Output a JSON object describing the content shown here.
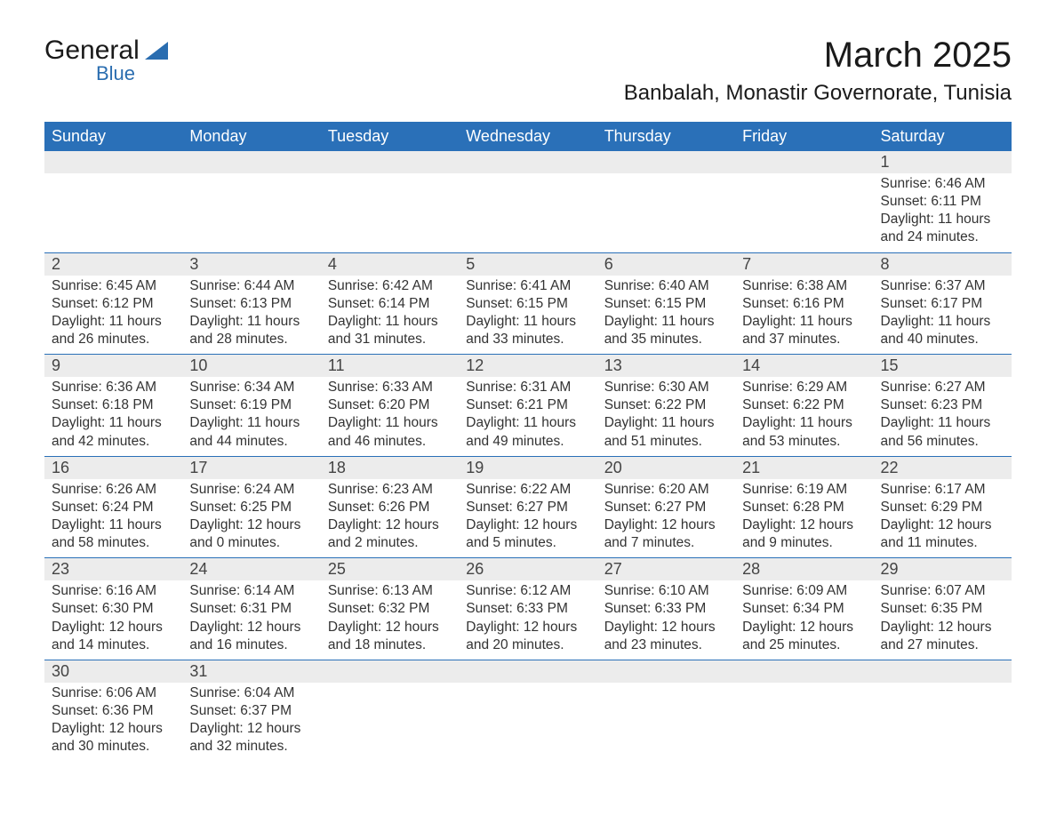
{
  "logo": {
    "general": "General",
    "blue": "Blue"
  },
  "title": "March 2025",
  "location": "Banbalah, Monastir Governorate, Tunisia",
  "day_headers": [
    "Sunday",
    "Monday",
    "Tuesday",
    "Wednesday",
    "Thursday",
    "Friday",
    "Saturday"
  ],
  "colors": {
    "header_bg": "#2a70b8",
    "row_divider": "#2a70b8",
    "daynum_bg": "#ececec",
    "accent_blue": "#2a6db0"
  },
  "weeks": [
    [
      null,
      null,
      null,
      null,
      null,
      null,
      {
        "n": "1",
        "sunrise": "Sunrise: 6:46 AM",
        "sunset": "Sunset: 6:11 PM",
        "dl1": "Daylight: 11 hours",
        "dl2": "and 24 minutes."
      }
    ],
    [
      {
        "n": "2",
        "sunrise": "Sunrise: 6:45 AM",
        "sunset": "Sunset: 6:12 PM",
        "dl1": "Daylight: 11 hours",
        "dl2": "and 26 minutes."
      },
      {
        "n": "3",
        "sunrise": "Sunrise: 6:44 AM",
        "sunset": "Sunset: 6:13 PM",
        "dl1": "Daylight: 11 hours",
        "dl2": "and 28 minutes."
      },
      {
        "n": "4",
        "sunrise": "Sunrise: 6:42 AM",
        "sunset": "Sunset: 6:14 PM",
        "dl1": "Daylight: 11 hours",
        "dl2": "and 31 minutes."
      },
      {
        "n": "5",
        "sunrise": "Sunrise: 6:41 AM",
        "sunset": "Sunset: 6:15 PM",
        "dl1": "Daylight: 11 hours",
        "dl2": "and 33 minutes."
      },
      {
        "n": "6",
        "sunrise": "Sunrise: 6:40 AM",
        "sunset": "Sunset: 6:15 PM",
        "dl1": "Daylight: 11 hours",
        "dl2": "and 35 minutes."
      },
      {
        "n": "7",
        "sunrise": "Sunrise: 6:38 AM",
        "sunset": "Sunset: 6:16 PM",
        "dl1": "Daylight: 11 hours",
        "dl2": "and 37 minutes."
      },
      {
        "n": "8",
        "sunrise": "Sunrise: 6:37 AM",
        "sunset": "Sunset: 6:17 PM",
        "dl1": "Daylight: 11 hours",
        "dl2": "and 40 minutes."
      }
    ],
    [
      {
        "n": "9",
        "sunrise": "Sunrise: 6:36 AM",
        "sunset": "Sunset: 6:18 PM",
        "dl1": "Daylight: 11 hours",
        "dl2": "and 42 minutes."
      },
      {
        "n": "10",
        "sunrise": "Sunrise: 6:34 AM",
        "sunset": "Sunset: 6:19 PM",
        "dl1": "Daylight: 11 hours",
        "dl2": "and 44 minutes."
      },
      {
        "n": "11",
        "sunrise": "Sunrise: 6:33 AM",
        "sunset": "Sunset: 6:20 PM",
        "dl1": "Daylight: 11 hours",
        "dl2": "and 46 minutes."
      },
      {
        "n": "12",
        "sunrise": "Sunrise: 6:31 AM",
        "sunset": "Sunset: 6:21 PM",
        "dl1": "Daylight: 11 hours",
        "dl2": "and 49 minutes."
      },
      {
        "n": "13",
        "sunrise": "Sunrise: 6:30 AM",
        "sunset": "Sunset: 6:22 PM",
        "dl1": "Daylight: 11 hours",
        "dl2": "and 51 minutes."
      },
      {
        "n": "14",
        "sunrise": "Sunrise: 6:29 AM",
        "sunset": "Sunset: 6:22 PM",
        "dl1": "Daylight: 11 hours",
        "dl2": "and 53 minutes."
      },
      {
        "n": "15",
        "sunrise": "Sunrise: 6:27 AM",
        "sunset": "Sunset: 6:23 PM",
        "dl1": "Daylight: 11 hours",
        "dl2": "and 56 minutes."
      }
    ],
    [
      {
        "n": "16",
        "sunrise": "Sunrise: 6:26 AM",
        "sunset": "Sunset: 6:24 PM",
        "dl1": "Daylight: 11 hours",
        "dl2": "and 58 minutes."
      },
      {
        "n": "17",
        "sunrise": "Sunrise: 6:24 AM",
        "sunset": "Sunset: 6:25 PM",
        "dl1": "Daylight: 12 hours",
        "dl2": "and 0 minutes."
      },
      {
        "n": "18",
        "sunrise": "Sunrise: 6:23 AM",
        "sunset": "Sunset: 6:26 PM",
        "dl1": "Daylight: 12 hours",
        "dl2": "and 2 minutes."
      },
      {
        "n": "19",
        "sunrise": "Sunrise: 6:22 AM",
        "sunset": "Sunset: 6:27 PM",
        "dl1": "Daylight: 12 hours",
        "dl2": "and 5 minutes."
      },
      {
        "n": "20",
        "sunrise": "Sunrise: 6:20 AM",
        "sunset": "Sunset: 6:27 PM",
        "dl1": "Daylight: 12 hours",
        "dl2": "and 7 minutes."
      },
      {
        "n": "21",
        "sunrise": "Sunrise: 6:19 AM",
        "sunset": "Sunset: 6:28 PM",
        "dl1": "Daylight: 12 hours",
        "dl2": "and 9 minutes."
      },
      {
        "n": "22",
        "sunrise": "Sunrise: 6:17 AM",
        "sunset": "Sunset: 6:29 PM",
        "dl1": "Daylight: 12 hours",
        "dl2": "and 11 minutes."
      }
    ],
    [
      {
        "n": "23",
        "sunrise": "Sunrise: 6:16 AM",
        "sunset": "Sunset: 6:30 PM",
        "dl1": "Daylight: 12 hours",
        "dl2": "and 14 minutes."
      },
      {
        "n": "24",
        "sunrise": "Sunrise: 6:14 AM",
        "sunset": "Sunset: 6:31 PM",
        "dl1": "Daylight: 12 hours",
        "dl2": "and 16 minutes."
      },
      {
        "n": "25",
        "sunrise": "Sunrise: 6:13 AM",
        "sunset": "Sunset: 6:32 PM",
        "dl1": "Daylight: 12 hours",
        "dl2": "and 18 minutes."
      },
      {
        "n": "26",
        "sunrise": "Sunrise: 6:12 AM",
        "sunset": "Sunset: 6:33 PM",
        "dl1": "Daylight: 12 hours",
        "dl2": "and 20 minutes."
      },
      {
        "n": "27",
        "sunrise": "Sunrise: 6:10 AM",
        "sunset": "Sunset: 6:33 PM",
        "dl1": "Daylight: 12 hours",
        "dl2": "and 23 minutes."
      },
      {
        "n": "28",
        "sunrise": "Sunrise: 6:09 AM",
        "sunset": "Sunset: 6:34 PM",
        "dl1": "Daylight: 12 hours",
        "dl2": "and 25 minutes."
      },
      {
        "n": "29",
        "sunrise": "Sunrise: 6:07 AM",
        "sunset": "Sunset: 6:35 PM",
        "dl1": "Daylight: 12 hours",
        "dl2": "and 27 minutes."
      }
    ],
    [
      {
        "n": "30",
        "sunrise": "Sunrise: 6:06 AM",
        "sunset": "Sunset: 6:36 PM",
        "dl1": "Daylight: 12 hours",
        "dl2": "and 30 minutes."
      },
      {
        "n": "31",
        "sunrise": "Sunrise: 6:04 AM",
        "sunset": "Sunset: 6:37 PM",
        "dl1": "Daylight: 12 hours",
        "dl2": "and 32 minutes."
      },
      null,
      null,
      null,
      null,
      null
    ]
  ]
}
